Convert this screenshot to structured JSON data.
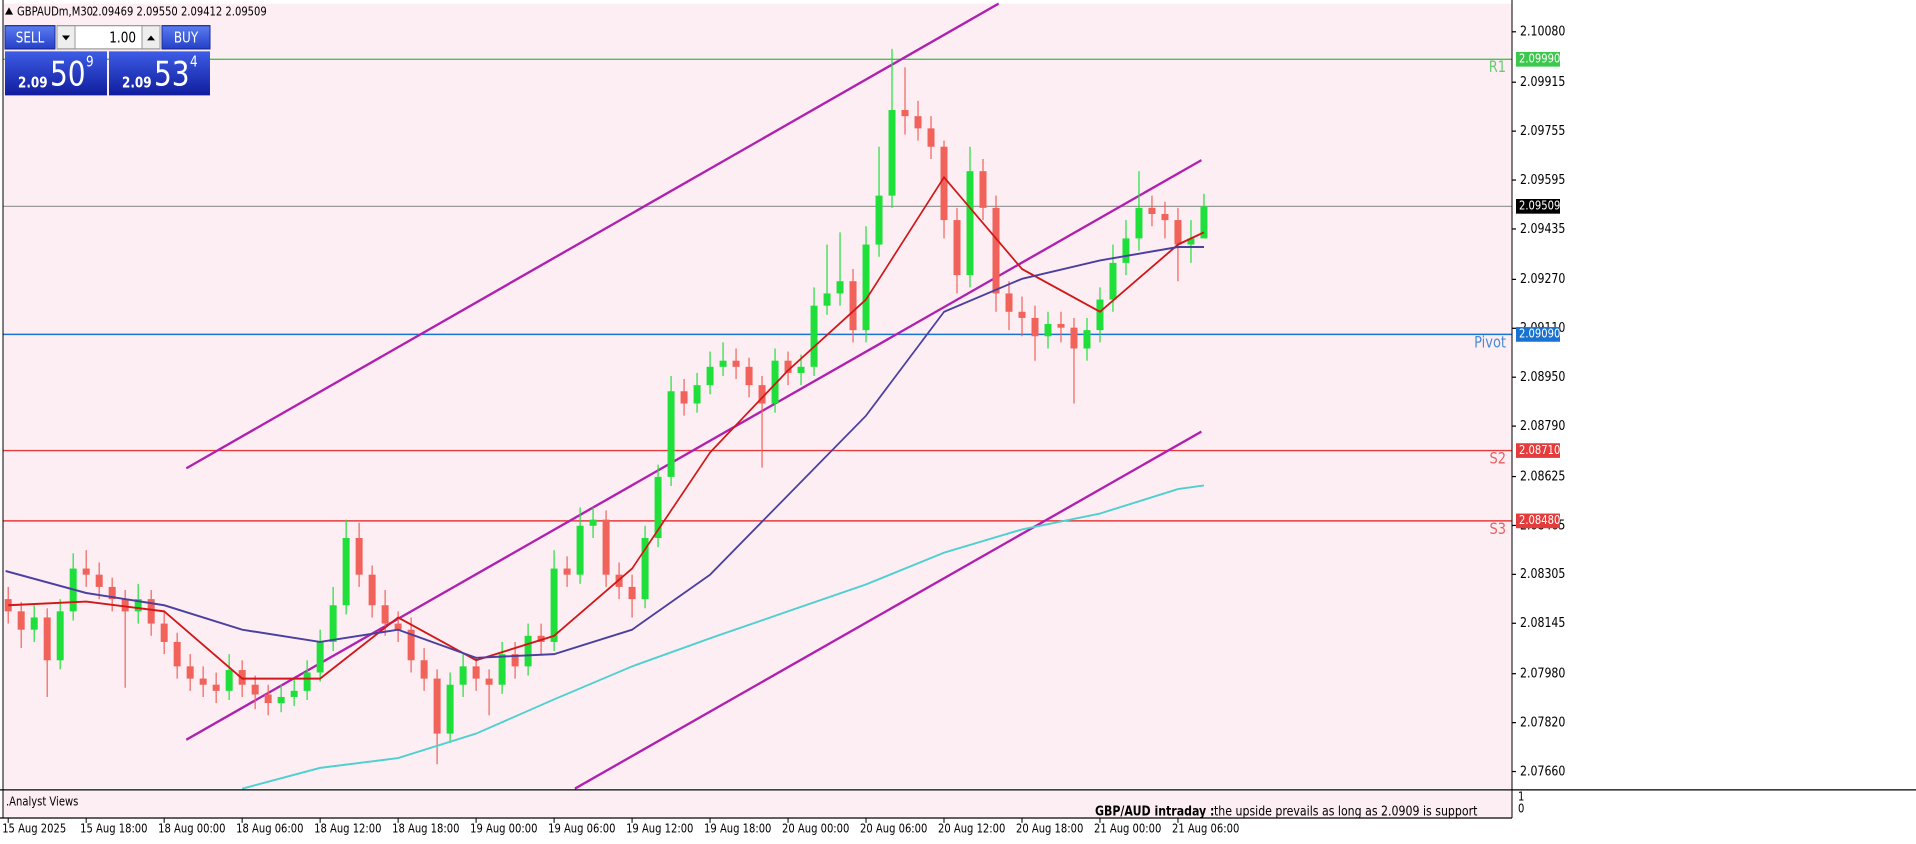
{
  "header": {
    "symbol": "GBPAUDm,M30",
    "ohlc": "2.09469 2.09550 2.09412 2.09509"
  },
  "trade_panel": {
    "sell": "SELL",
    "buy": "BUY",
    "volume": "1.00",
    "bid": {
      "big": "2.09",
      "pips": "50",
      "point": "9"
    },
    "ask": {
      "big": "2.09",
      "pips": "53",
      "point": "4"
    }
  },
  "chart_data": {
    "type": "candlestick",
    "xlim": [
      -0.4,
      115.7
    ],
    "ylim": [
      2.07604,
      2.10172
    ],
    "xticks": [
      {
        "value": 0,
        "label": "15 Aug 2025"
      },
      {
        "value": 6,
        "label": "15 Aug 18:00"
      },
      {
        "value": 12,
        "label": "18 Aug 00:00"
      },
      {
        "value": 18,
        "label": "18 Aug 06:00"
      },
      {
        "value": 24,
        "label": "18 Aug 12:00"
      },
      {
        "value": 30,
        "label": "18 Aug 18:00"
      },
      {
        "value": 36,
        "label": "19 Aug 00:00"
      },
      {
        "value": 42,
        "label": "19 Aug 06:00"
      },
      {
        "value": 48,
        "label": "19 Aug 12:00"
      },
      {
        "value": 54,
        "label": "19 Aug 18:00"
      },
      {
        "value": 60,
        "label": "20 Aug 00:00"
      },
      {
        "value": 66,
        "label": "20 Aug 06:00"
      },
      {
        "value": 72,
        "label": "20 Aug 12:00"
      },
      {
        "value": 78,
        "label": "20 Aug 18:00"
      },
      {
        "value": 84,
        "label": "21 Aug 00:00"
      },
      {
        "value": 90,
        "label": "21 Aug 06:00"
      }
    ],
    "yticks": [
      {
        "value": 2.1008,
        "label": "2.10080"
      },
      {
        "value": 2.09915,
        "label": "2.09915"
      },
      {
        "value": 2.09755,
        "label": "2.09755"
      },
      {
        "value": 2.09595,
        "label": "2.09595"
      },
      {
        "value": 2.09435,
        "label": "2.09435"
      },
      {
        "value": 2.0927,
        "label": "2.09270"
      },
      {
        "value": 2.0911,
        "label": "2.09110"
      },
      {
        "value": 2.0895,
        "label": "2.08950"
      },
      {
        "value": 2.0879,
        "label": "2.08790"
      },
      {
        "value": 2.08625,
        "label": "2.08625"
      },
      {
        "value": 2.08465,
        "label": "2.08465"
      },
      {
        "value": 2.08305,
        "label": "2.08305"
      },
      {
        "value": 2.08145,
        "label": "2.08145"
      },
      {
        "value": 2.0798,
        "label": "2.07980"
      },
      {
        "value": 2.0782,
        "label": "2.07820"
      },
      {
        "value": 2.0766,
        "label": "2.07660"
      }
    ],
    "up_color": "#1fe03a",
    "down_color": "#f0625a",
    "open": [
      2.08224,
      2.08184,
      2.08124,
      2.08164,
      2.08024,
      2.08184,
      2.08324,
      2.08304,
      2.08264,
      2.08224,
      2.08184,
      2.08224,
      2.08144,
      2.08084,
      2.08004,
      2.07964,
      2.07944,
      2.07924,
      2.07992,
      2.07944,
      2.07912,
      2.07884,
      2.07904,
      2.07924,
      2.07984,
      2.08084,
      2.08204,
      2.08424,
      2.08304,
      2.08204,
      2.08144,
      2.08124,
      2.08024,
      2.07964,
      2.07784,
      2.07944,
      2.08004,
      2.07964,
      2.07944,
      2.08044,
      2.08004,
      2.08104,
      2.08084,
      2.08324,
      2.08304,
      2.08464,
      2.08484,
      2.08304,
      2.08264,
      2.08224,
      2.08424,
      2.08624,
      2.08904,
      2.08864,
      2.08924,
      2.08984,
      2.09004,
      2.08984,
      2.08924,
      2.08864,
      2.09004,
      2.08964,
      2.08984,
      2.09184,
      2.09224,
      2.09264,
      2.09104,
      2.09384,
      2.09544,
      2.09824,
      2.09804,
      2.09764,
      2.09704,
      2.09464,
      2.09284,
      2.09624,
      2.09504,
      2.09224,
      2.09164,
      2.09144,
      2.09084,
      2.09124,
      2.09112,
      2.09044,
      2.09104,
      2.09204,
      2.09324,
      2.09404,
      2.09504,
      2.09484,
      2.09464,
      2.09384,
      2.09404
    ],
    "high": [
      2.08264,
      2.08214,
      2.08204,
      2.08194,
      2.08224,
      2.08374,
      2.08384,
      2.08344,
      2.08294,
      2.08254,
      2.08274,
      2.08254,
      2.08184,
      2.08114,
      2.08044,
      2.08004,
      2.07984,
      2.08044,
      2.08024,
      2.07974,
      2.07944,
      2.07944,
      2.07964,
      2.08024,
      2.08124,
      2.08264,
      2.08484,
      2.08474,
      2.08334,
      2.08254,
      2.08184,
      2.08164,
      2.08064,
      2.07994,
      2.07984,
      2.08044,
      2.08034,
      2.07994,
      2.08084,
      2.08084,
      2.08144,
      2.08144,
      2.08384,
      2.08364,
      2.08524,
      2.08524,
      2.08514,
      2.08344,
      2.08304,
      2.08464,
      2.08664,
      2.08954,
      2.08944,
      2.08964,
      2.09034,
      2.09064,
      2.09044,
      2.09014,
      2.08954,
      2.09044,
      2.09034,
      2.09024,
      2.09244,
      2.09384,
      2.09424,
      2.09304,
      2.09444,
      2.09704,
      2.10024,
      2.09964,
      2.09854,
      2.09804,
      2.09724,
      2.09504,
      2.09704,
      2.09664,
      2.09544,
      2.09264,
      2.09214,
      2.09184,
      2.09164,
      2.09164,
      2.09144,
      2.09144,
      2.09244,
      2.09384,
      2.09464,
      2.09624,
      2.09544,
      2.09524,
      2.09504,
      2.09464,
      2.0955
    ],
    "low": [
      2.08144,
      2.08064,
      2.08084,
      2.07904,
      2.07994,
      2.08154,
      2.08264,
      2.08224,
      2.08184,
      2.07934,
      2.08144,
      2.08104,
      2.08044,
      2.07964,
      2.07924,
      2.07904,
      2.07884,
      2.07894,
      2.07904,
      2.07864,
      2.07844,
      2.07854,
      2.07874,
      2.07894,
      2.07954,
      2.08054,
      2.08174,
      2.08264,
      2.08164,
      2.08104,
      2.08084,
      2.07984,
      2.07924,
      2.07684,
      2.07754,
      2.07904,
      2.07924,
      2.07844,
      2.07914,
      2.07964,
      2.07974,
      2.08044,
      2.08054,
      2.08264,
      2.08274,
      2.08424,
      2.08264,
      2.08224,
      2.08164,
      2.08194,
      2.08394,
      2.08594,
      2.08824,
      2.08834,
      2.08894,
      2.08954,
      2.08944,
      2.08884,
      2.08654,
      2.08834,
      2.08924,
      2.08924,
      2.08954,
      2.09154,
      2.09184,
      2.09064,
      2.09064,
      2.09344,
      2.09504,
      2.09744,
      2.09724,
      2.09664,
      2.09404,
      2.09224,
      2.09244,
      2.09464,
      2.09164,
      2.09104,
      2.09084,
      2.09004,
      2.09044,
      2.09064,
      2.08864,
      2.09004,
      2.09064,
      2.09164,
      2.09284,
      2.09364,
      2.09444,
      2.09404,
      2.09264,
      2.09324,
      2.09412
    ],
    "close": [
      2.08184,
      2.08124,
      2.08164,
      2.08024,
      2.08184,
      2.08324,
      2.08304,
      2.08264,
      2.08224,
      2.08184,
      2.08224,
      2.08144,
      2.08084,
      2.08004,
      2.07964,
      2.07944,
      2.07924,
      2.07992,
      2.07944,
      2.07912,
      2.07884,
      2.07904,
      2.07924,
      2.07984,
      2.08084,
      2.08204,
      2.08424,
      2.08304,
      2.08204,
      2.08144,
      2.08124,
      2.08024,
      2.07964,
      2.07784,
      2.07944,
      2.08004,
      2.07964,
      2.07944,
      2.08044,
      2.08004,
      2.08104,
      2.08084,
      2.08324,
      2.08304,
      2.08464,
      2.08484,
      2.08304,
      2.08264,
      2.08224,
      2.08424,
      2.08624,
      2.08904,
      2.08864,
      2.08924,
      2.08984,
      2.09004,
      2.08984,
      2.08924,
      2.08864,
      2.09004,
      2.08964,
      2.08984,
      2.09184,
      2.09224,
      2.09264,
      2.09104,
      2.09384,
      2.09544,
      2.09824,
      2.09804,
      2.09764,
      2.09704,
      2.09464,
      2.09284,
      2.09624,
      2.09504,
      2.09224,
      2.09164,
      2.09144,
      2.09084,
      2.09124,
      2.09112,
      2.09044,
      2.09104,
      2.09204,
      2.09324,
      2.09404,
      2.09504,
      2.09484,
      2.09464,
      2.09384,
      2.09404,
      2.09509
    ],
    "moving_averages": [
      {
        "color": "#d01818",
        "x": [
          0,
          6,
          12,
          18,
          24,
          30,
          36,
          42,
          48,
          54,
          60,
          66,
          72,
          78,
          84,
          90,
          92
        ],
        "values": [
          2.08204,
          2.08216,
          2.08184,
          2.07964,
          2.07964,
          2.08164,
          2.08024,
          2.08104,
          2.08324,
          2.08704,
          2.08972,
          2.09204,
          2.09604,
          2.09304,
          2.09164,
          2.09384,
          2.09424
        ]
      },
      {
        "color": "#4b3fa0",
        "x": [
          -0.2,
          6,
          12,
          18,
          24,
          30,
          36,
          42,
          48,
          54,
          60,
          66,
          72,
          78,
          84,
          90,
          92
        ],
        "values": [
          2.08316,
          2.08244,
          2.08204,
          2.08124,
          2.08084,
          2.08124,
          2.08032,
          2.08044,
          2.08124,
          2.08304,
          2.08564,
          2.08824,
          2.09164,
          2.09272,
          2.09332,
          2.09376,
          2.09376
        ]
      },
      {
        "color": "#4fd0d0",
        "x": [
          18,
          24,
          30,
          36,
          42,
          48,
          54,
          60,
          66,
          72,
          78,
          84,
          90,
          92
        ],
        "values": [
          2.07604,
          2.07672,
          2.07704,
          2.07784,
          2.07896,
          2.08004,
          2.08096,
          2.08184,
          2.08272,
          2.08376,
          2.08452,
          2.08504,
          2.08584,
          2.08596
        ]
      }
    ],
    "trendlines": [
      {
        "color": "#b020b0",
        "x": [
          13.7,
          76.2
        ],
        "values": [
          2.08652,
          2.10172
        ]
      },
      {
        "color": "#b020b0",
        "x": [
          13.7,
          91.8
        ],
        "values": [
          2.07764,
          2.0966
        ]
      },
      {
        "color": "#b020b0",
        "x": [
          43.6,
          91.8
        ],
        "values": [
          2.07604,
          2.08772
        ]
      }
    ],
    "levels": [
      {
        "name": "R1",
        "value": 2.0999,
        "label": "2.09990",
        "color": "#3cc84c"
      },
      {
        "name": "Pivot",
        "value": 2.0909,
        "label": "2.09090",
        "color": "#1a72d0"
      },
      {
        "name": "S2",
        "value": 2.0871,
        "label": "2.08710",
        "color": "#e43c3c"
      },
      {
        "name": "S3",
        "value": 2.0848,
        "label": "2.08480",
        "color": "#e43c3c"
      }
    ],
    "last_price": {
      "value": 2.09509,
      "label": "2.09509",
      "color": "#9a9a9a"
    }
  },
  "indicator_panel": {
    "title": ".Analyst Views",
    "yticks": [
      1,
      0
    ]
  },
  "analyst_note": {
    "heading": "GBP/AUD intraday :",
    "text": "the upside prevails as long as 2.0909 is support"
  }
}
